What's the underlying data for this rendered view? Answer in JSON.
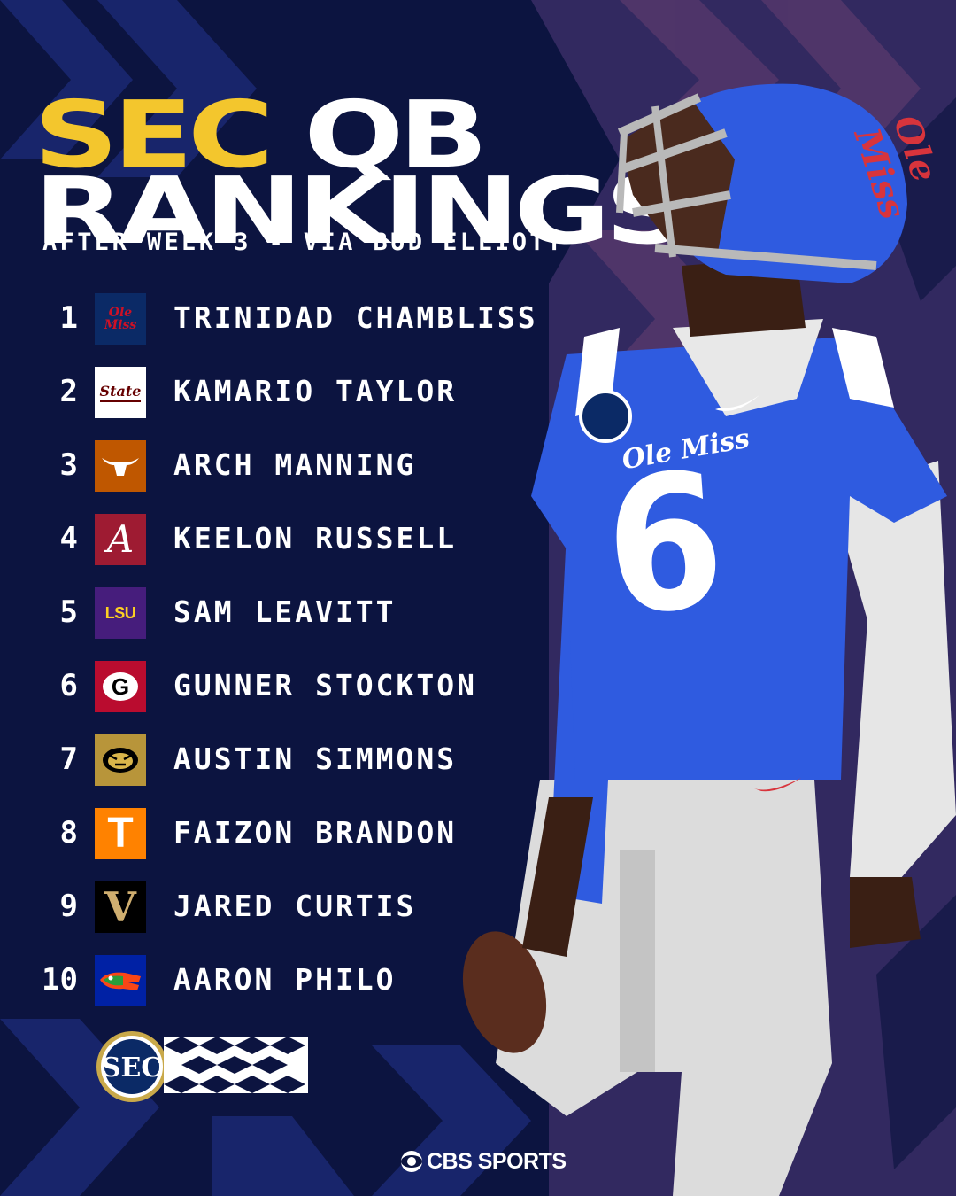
{
  "title": {
    "line1_highlight": "SEC",
    "line1_rest": " QB",
    "line2": "RANKINGS"
  },
  "subtitle": "AFTER WEEK 3 - VIA BUD ELLIOTT",
  "rankings": [
    {
      "rank": "1",
      "name": "TRINIDAD CHAMBLISS",
      "school_logo": "ole-miss-logo",
      "logo_text": "Ole Miss",
      "color": "#0b2a66",
      "accent": "#ce1126"
    },
    {
      "rank": "2",
      "name": "KAMARIO TAYLOR",
      "school_logo": "mississippi-state-logo",
      "logo_text": "State",
      "color": "#ffffff",
      "accent": "#660000"
    },
    {
      "rank": "3",
      "name": "ARCH MANNING",
      "school_logo": "texas-longhorn-logo",
      "logo_text": "",
      "color": "#bf5700",
      "accent": "#ffffff"
    },
    {
      "rank": "4",
      "name": "KEELON RUSSELL",
      "school_logo": "alabama-logo",
      "logo_text": "A",
      "color": "#9e1b32",
      "accent": "#ffffff"
    },
    {
      "rank": "5",
      "name": "SAM LEAVITT",
      "school_logo": "lsu-logo",
      "logo_text": "LSU",
      "color": "#461d7c",
      "accent": "#fdd023"
    },
    {
      "rank": "6",
      "name": "GUNNER STOCKTON",
      "school_logo": "georgia-logo",
      "logo_text": "G",
      "color": "#ba0c2f",
      "accent": "#000000"
    },
    {
      "rank": "7",
      "name": "AUSTIN SIMMONS",
      "school_logo": "missouri-tiger-logo",
      "logo_text": "",
      "color": "#b8953a",
      "accent": "#000000"
    },
    {
      "rank": "8",
      "name": "FAIZON BRANDON",
      "school_logo": "tennessee-logo",
      "logo_text": "T",
      "color": "#ff8200",
      "accent": "#ffffff"
    },
    {
      "rank": "9",
      "name": "JARED CURTIS",
      "school_logo": "vanderbilt-logo",
      "logo_text": "V",
      "color": "#000000",
      "accent": "#cfae70"
    },
    {
      "rank": "10",
      "name": "AARON PHILO",
      "school_logo": "florida-gator-logo",
      "logo_text": "",
      "color": "#0021a5",
      "accent": "#fa4616"
    }
  ],
  "badge": {
    "text": "SEC",
    "icon": "sec-logo-badge"
  },
  "footer": {
    "brand": "CBS SPORTS",
    "icon": "cbs-eye-icon"
  },
  "photo": {
    "jersey_number": "6",
    "jersey_script": "Ole Miss",
    "helmet_script": "Ole Miss"
  },
  "colors": {
    "background": "#0c1440",
    "accent_yellow": "#f3c62d",
    "jersey_blue": "#2f5be0",
    "chevron_dark": "#1c2a78"
  }
}
